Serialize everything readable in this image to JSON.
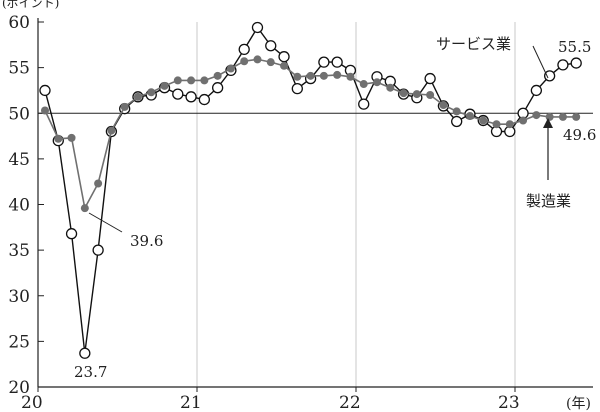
{
  "chart_data": {
    "type": "line",
    "ylabel": "(ポイント)",
    "xunit": "(年)",
    "ylim": [
      20,
      60
    ],
    "yticks": [
      20,
      25,
      30,
      35,
      40,
      45,
      50,
      55,
      60
    ],
    "xticks": [
      {
        "label": "20",
        "x": 0
      },
      {
        "label": "21",
        "x": 12
      },
      {
        "label": "22",
        "x": 24
      },
      {
        "label": "23",
        "x": 36
      }
    ],
    "xlim": [
      0,
      41
    ],
    "reference_line": 50,
    "series": [
      {
        "name": "サービス業",
        "marker": "open-circle",
        "color": "#111111",
        "values": [
          52.5,
          47.0,
          36.8,
          23.7,
          35.0,
          48.0,
          50.5,
          51.8,
          52.0,
          52.8,
          52.1,
          51.8,
          51.5,
          52.8,
          54.7,
          57.0,
          59.4,
          57.4,
          56.2,
          52.7,
          53.8,
          55.6,
          55.6,
          54.7,
          51.0,
          54.0,
          53.5,
          52.1,
          51.7,
          53.8,
          50.8,
          49.1,
          49.9,
          49.2,
          48.0,
          48.0,
          50.0,
          52.5,
          54.1,
          55.3,
          55.5
        ]
      },
      {
        "name": "製造業",
        "marker": "filled-circle",
        "color": "#707070",
        "values": [
          50.3,
          47.2,
          47.3,
          39.6,
          42.3,
          48.1,
          50.7,
          51.8,
          52.3,
          53.0,
          53.6,
          53.6,
          53.6,
          54.1,
          54.9,
          55.7,
          55.9,
          55.6,
          55.2,
          54.0,
          54.1,
          54.1,
          54.2,
          54.0,
          53.2,
          53.4,
          52.8,
          52.2,
          52.1,
          52.0,
          50.9,
          50.2,
          49.7,
          49.2,
          48.8,
          48.8,
          49.2,
          49.8,
          49.6,
          49.6,
          49.6
        ]
      }
    ],
    "annotations": [
      {
        "text": "サービス業",
        "target_series": 0
      },
      {
        "text": "55.5",
        "target_series": 0,
        "index": 40
      },
      {
        "text": "23.7",
        "target_series": 0,
        "index": 3
      },
      {
        "text": "39.6",
        "target_series": 1,
        "index": 3
      },
      {
        "text": "製造業",
        "target_series": 1
      },
      {
        "text": "49.6",
        "target_series": 1,
        "index": 40
      }
    ]
  }
}
